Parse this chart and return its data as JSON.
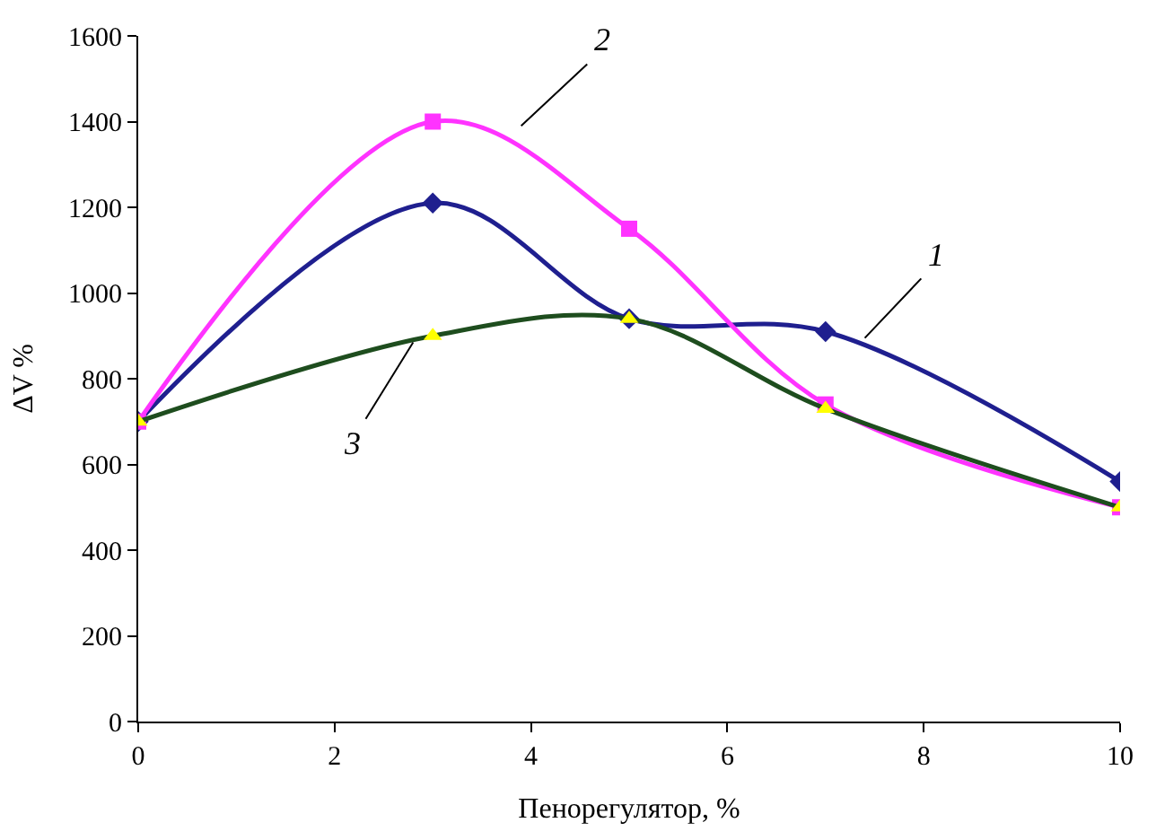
{
  "chart_data": {
    "type": "line",
    "xlabel": "Пенорегулятор, %",
    "ylabel": "ΔV %",
    "x": [
      0,
      3,
      5,
      7,
      10
    ],
    "series": [
      {
        "name": "1",
        "color": "#1f1f8f",
        "marker": "diamond",
        "values": [
          700,
          1210,
          940,
          910,
          560
        ]
      },
      {
        "name": "2",
        "color": "#ff33ff",
        "marker": "square",
        "values": [
          700,
          1400,
          1150,
          740,
          500
        ]
      },
      {
        "name": "3",
        "color": "#1e4d1e",
        "colors": [
          "#ffff00",
          "#ffff00",
          "#ffff00",
          "#ffff00",
          "#ffff00"
        ],
        "marker": "triangle",
        "values": [
          700,
          900,
          940,
          730,
          500
        ]
      }
    ],
    "xlim": [
      0,
      10
    ],
    "xticks": [
      0,
      2,
      4,
      6,
      8,
      10
    ],
    "ylim": [
      0,
      1600
    ],
    "yticks": [
      0,
      200,
      400,
      600,
      800,
      1000,
      1200,
      1400,
      1600
    ],
    "legend": false
  }
}
